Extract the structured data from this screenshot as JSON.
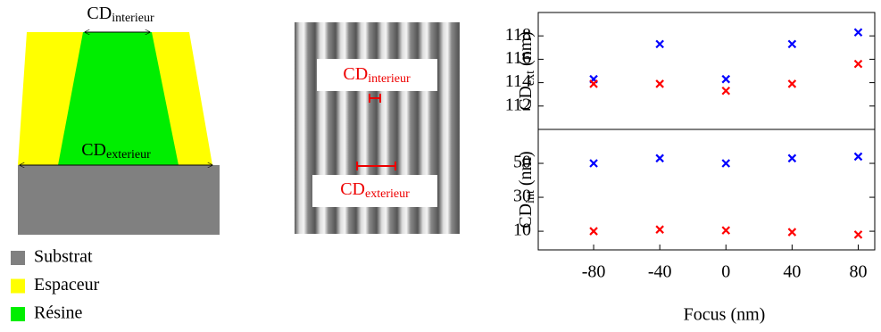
{
  "diagram": {
    "top_label": {
      "main": "CD",
      "sub": "interieur"
    },
    "bottom_label": {
      "main": "CD",
      "sub": "exterieur"
    },
    "legend": [
      {
        "label": "Substrat",
        "color": "#808080"
      },
      {
        "label": "Espaceur",
        "color": "#ffff00"
      },
      {
        "label": "Résine",
        "color": "#00ee00"
      }
    ]
  },
  "image": {
    "top_label": {
      "main": "CD",
      "sub": "interieur"
    },
    "bottom_label": {
      "main": "CD",
      "sub": "exterieur"
    }
  },
  "chart_data": [
    {
      "type": "scatter",
      "ylabel": {
        "main": "CD",
        "sub": "ext",
        "unit": " (nm)"
      },
      "x": [
        -80,
        -40,
        0,
        40,
        80
      ],
      "xlim": [
        -113.5,
        90
      ],
      "ylim": [
        110,
        120
      ],
      "yticks": [
        112,
        114,
        116,
        118
      ],
      "series": [
        {
          "color": "#0000ff",
          "values": [
            114.3,
            117.3,
            114.3,
            117.3,
            118.3
          ]
        },
        {
          "color": "#ff0000",
          "values": [
            113.9,
            113.9,
            113.3,
            113.9,
            115.6
          ]
        }
      ]
    },
    {
      "type": "scatter",
      "ylabel": {
        "main": "CD",
        "sub": "int",
        "unit": " (nm)"
      },
      "xlabel": "Focus (nm)",
      "x": [
        -80,
        -40,
        0,
        40,
        80
      ],
      "xlim": [
        -113.5,
        90
      ],
      "xticks": [
        -80,
        -40,
        0,
        40,
        80
      ],
      "ylim": [
        -1,
        70
      ],
      "yticks": [
        10,
        30,
        50
      ],
      "series": [
        {
          "color": "#0000ff",
          "values": [
            50,
            53,
            50,
            53,
            54
          ]
        },
        {
          "color": "#ff0000",
          "values": [
            10,
            11,
            10.5,
            9.5,
            8
          ]
        }
      ]
    }
  ]
}
